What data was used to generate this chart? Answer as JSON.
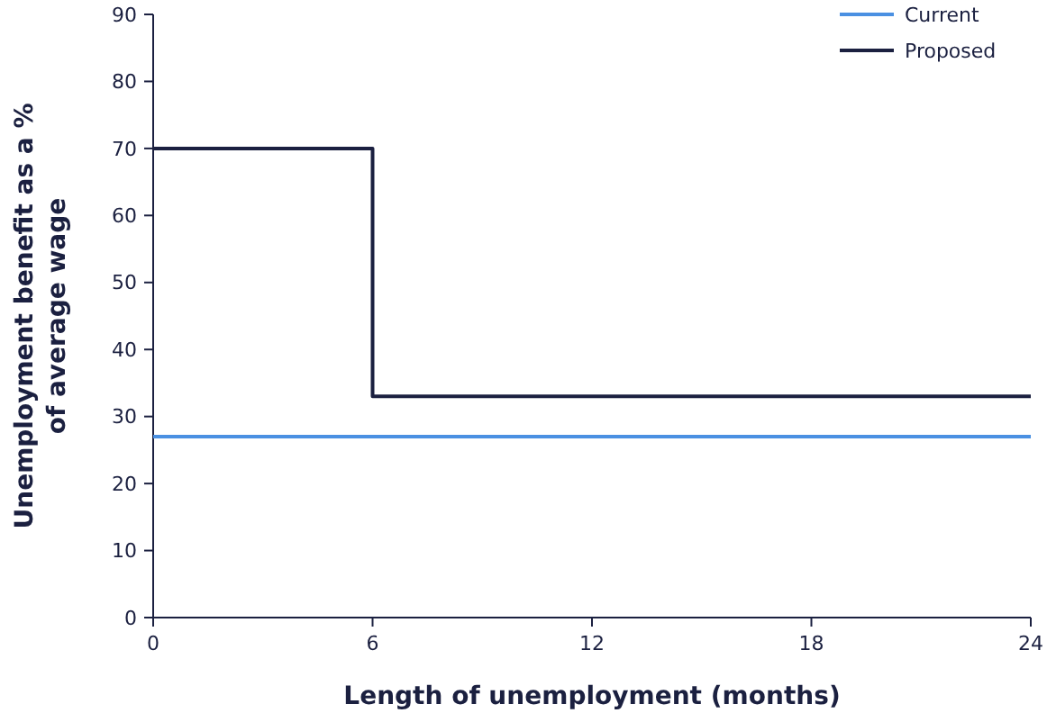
{
  "chart_data": {
    "type": "step",
    "xlabel": "Length of unemployment (months)",
    "ylabel": "Unemployment benefit as a %\nof average wage",
    "series": [
      {
        "name": "Current",
        "color": "#4a90e2",
        "x": [
          0,
          24
        ],
        "values": [
          27,
          27
        ]
      },
      {
        "name": "Proposed",
        "color": "#1b2040",
        "x": [
          0,
          6,
          24
        ],
        "values": [
          70,
          33,
          33
        ]
      }
    ],
    "xlim": [
      0,
      24
    ],
    "xticks": [
      0,
      6,
      12,
      18,
      24
    ],
    "ylim": [
      0,
      90
    ],
    "yticks": [
      0,
      10,
      20,
      30,
      40,
      50,
      60,
      70,
      80,
      90
    ],
    "grid": false,
    "legend": "top right"
  }
}
